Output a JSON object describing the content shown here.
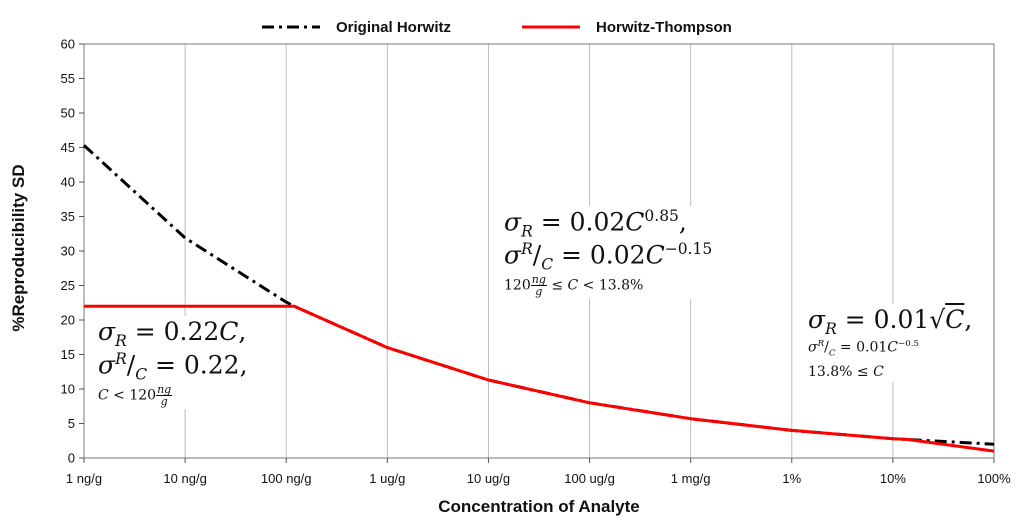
{
  "chart_data": {
    "type": "line",
    "xlabel": "Concentration of Analyte",
    "ylabel": "%Reproducibility SD",
    "x_scale": "log",
    "x_ticks": [
      "1 ng/g",
      "10 ng/g",
      "100 ng/g",
      "1 ug/g",
      "10 ug/g",
      "100 ug/g",
      "1 mg/g",
      "1%",
      "10%",
      "100%"
    ],
    "ylim": [
      0,
      60
    ],
    "y_ticks": [
      "0",
      "5",
      "10",
      "15",
      "20",
      "25",
      "30",
      "35",
      "40",
      "45",
      "50",
      "55",
      "60"
    ],
    "grid": "vertical",
    "legend_position": "top",
    "series": [
      {
        "name": "Original Horwitz",
        "color": "#000000",
        "style": "dash-dot",
        "x": [
          "1 ng/g",
          "10 ng/g",
          "100 ng/g",
          "120 ng/g",
          "1 ug/g",
          "10 ug/g",
          "100 ug/g",
          "1 mg/g",
          "1%",
          "10%",
          "100%"
        ],
        "y": [
          45.3,
          31.9,
          22.6,
          22.0,
          16.0,
          11.3,
          8.0,
          5.7,
          4.0,
          2.8,
          2.0
        ]
      },
      {
        "name": "Horwitz-Thompson",
        "color": "#ff0000",
        "style": "solid",
        "x": [
          "1 ng/g",
          "120 ng/g",
          "1 ug/g",
          "10 ug/g",
          "100 ug/g",
          "1 mg/g",
          "1%",
          "10%",
          "13.8%",
          "100%"
        ],
        "y": [
          22.0,
          22.0,
          16.0,
          11.3,
          8.0,
          5.7,
          4.0,
          2.8,
          2.7,
          1.0
        ]
      }
    ],
    "annotations": {
      "left": {
        "line1": "σ",
        "line1_sub": "R",
        "line1_rest": " = 0.22",
        "line1_var": "C",
        "line1_end": ",",
        "line2_num": "σ",
        "line2_num_sub": "R",
        "line2_den": "C",
        "line2_rest": " = 0.22,",
        "line3_pre": "C",
        "line3_mid": " < 120",
        "line3_frac_num": "ng",
        "line3_frac_den": "g"
      },
      "middle": {
        "line1": "σ",
        "line1_sub": "R",
        "line1_rest": " = 0.02",
        "line1_var": "C",
        "line1_exp": "0.85",
        "line1_end": ",",
        "line2_num": "σ",
        "line2_num_sub": "R",
        "line2_den": "C",
        "line2_rest": " = 0.02",
        "line2_var": "C",
        "line2_exp": "−0.15",
        "line3_pre": "120",
        "line3_frac_num": "ng",
        "line3_frac_den": "g",
        "line3_mid": " ≤ ",
        "line3_var": "C",
        "line3_end": " < 13.8%"
      },
      "right": {
        "line1": "σ",
        "line1_sub": "R",
        "line1_rest": " = 0.01√",
        "line1_var": "C",
        "line1_end": ",",
        "line2_num": "σ",
        "line2_num_sub": "R",
        "line2_den": "C",
        "line2_rest": " = 0.01",
        "line2_var": "C",
        "line2_exp": "−0.5",
        "line3_pre": "13.8% ≤ ",
        "line3_var": "C"
      }
    }
  }
}
